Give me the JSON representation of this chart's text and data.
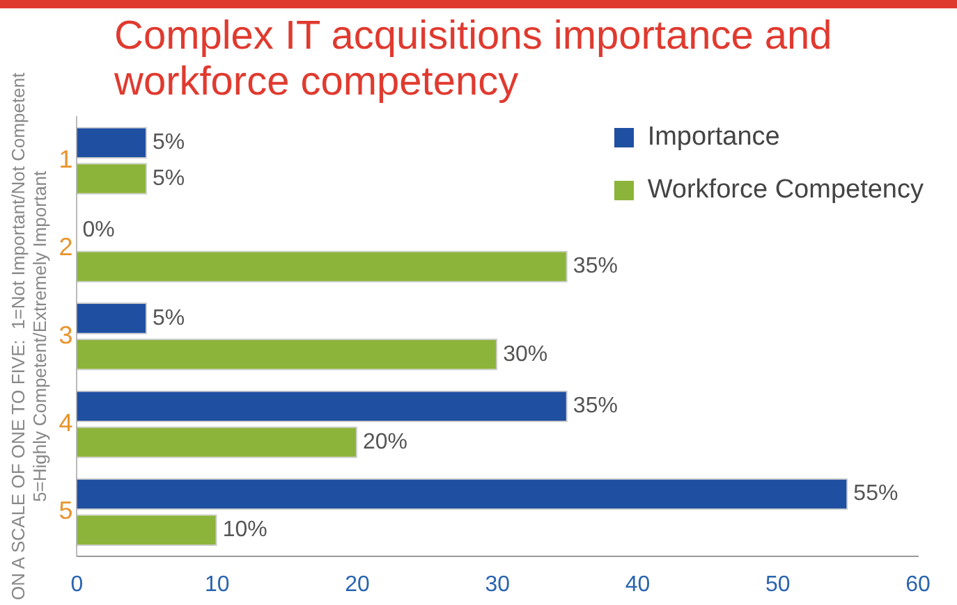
{
  "chart_data": {
    "type": "bar",
    "orientation": "horizontal",
    "title": "Complex IT acquisitions importance and workforce competency",
    "ylabel": "ON A SCALE OF ONE TO FIVE:  1=Not Important/Not Competent\n5=Highly Competent/Extremely Important",
    "categories": [
      "1",
      "2",
      "3",
      "4",
      "5"
    ],
    "series": [
      {
        "name": "Importance",
        "color": "#1f4fa0",
        "values": [
          5,
          0,
          5,
          35,
          55
        ],
        "value_labels": [
          "5%",
          "0%",
          "5%",
          "35%",
          "55%"
        ]
      },
      {
        "name": "Workforce Competency",
        "color": "#8cb43a",
        "values": [
          5,
          35,
          30,
          20,
          10
        ],
        "value_labels": [
          "5%",
          "35%",
          "30%",
          "20%",
          "10%"
        ]
      }
    ],
    "xlim": [
      0,
      60
    ],
    "xticks": [
      0,
      10,
      20,
      30,
      40,
      50,
      60
    ],
    "grid": false,
    "legend": "top right"
  }
}
